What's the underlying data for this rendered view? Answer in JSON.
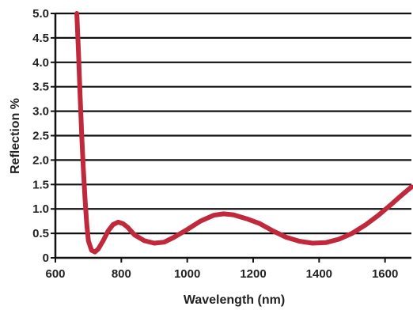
{
  "chart_data": {
    "type": "line",
    "title": "",
    "xlabel": "Wavelength (nm)",
    "ylabel": "Reflection %",
    "xlim": [
      600,
      1680
    ],
    "ylim": [
      0,
      5.0
    ],
    "x_ticks": [
      "600",
      "800",
      "1000",
      "1200",
      "1400",
      "1600"
    ],
    "x_tick_values": [
      600,
      800,
      1000,
      1200,
      1400,
      1600
    ],
    "y_ticks": [
      "0",
      "0.5",
      "1.0",
      "1.5",
      "2.0",
      "2.5",
      "3.0",
      "3.5",
      "4.0",
      "4.5",
      "5.0"
    ],
    "y_tick_values": [
      0,
      0.5,
      1.0,
      1.5,
      2.0,
      2.5,
      3.0,
      3.5,
      4.0,
      4.5,
      5.0
    ],
    "grid": true,
    "series": [
      {
        "color": "#c0283c",
        "points": [
          [
            665,
            5.0
          ],
          [
            670,
            4.2
          ],
          [
            675,
            3.3
          ],
          [
            680,
            2.5
          ],
          [
            685,
            1.8
          ],
          [
            690,
            1.2
          ],
          [
            695,
            0.7
          ],
          [
            700,
            0.35
          ],
          [
            710,
            0.15
          ],
          [
            720,
            0.12
          ],
          [
            730,
            0.18
          ],
          [
            745,
            0.35
          ],
          [
            760,
            0.55
          ],
          [
            775,
            0.68
          ],
          [
            790,
            0.73
          ],
          [
            805,
            0.7
          ],
          [
            820,
            0.62
          ],
          [
            840,
            0.47
          ],
          [
            870,
            0.35
          ],
          [
            900,
            0.3
          ],
          [
            930,
            0.32
          ],
          [
            960,
            0.42
          ],
          [
            1000,
            0.58
          ],
          [
            1040,
            0.75
          ],
          [
            1080,
            0.87
          ],
          [
            1110,
            0.9
          ],
          [
            1140,
            0.88
          ],
          [
            1180,
            0.8
          ],
          [
            1220,
            0.7
          ],
          [
            1260,
            0.55
          ],
          [
            1300,
            0.42
          ],
          [
            1340,
            0.34
          ],
          [
            1380,
            0.3
          ],
          [
            1420,
            0.31
          ],
          [
            1460,
            0.38
          ],
          [
            1500,
            0.5
          ],
          [
            1540,
            0.67
          ],
          [
            1580,
            0.87
          ],
          [
            1620,
            1.1
          ],
          [
            1650,
            1.28
          ],
          [
            1680,
            1.45
          ]
        ]
      }
    ]
  }
}
